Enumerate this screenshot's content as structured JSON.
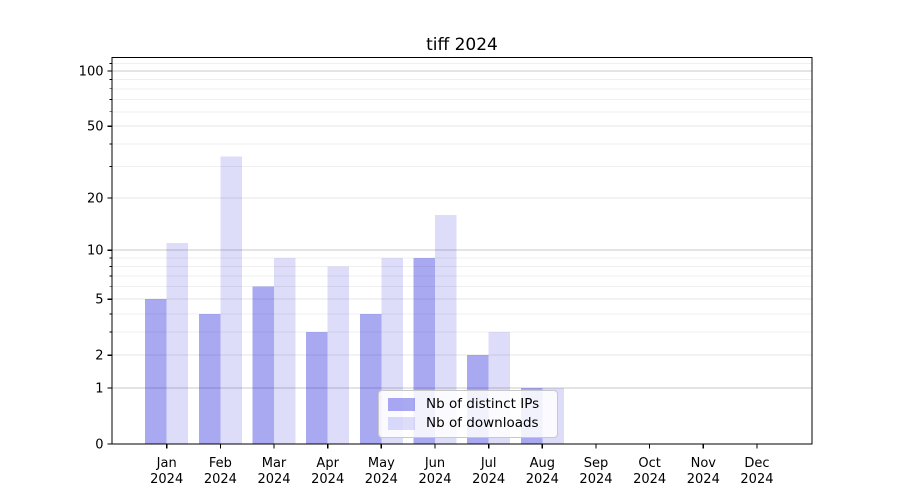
{
  "chart_data": {
    "type": "bar",
    "title": "tiff 2024",
    "categories": [
      "Jan",
      "Feb",
      "Mar",
      "Apr",
      "May",
      "Jun",
      "Jul",
      "Aug",
      "Sep",
      "Oct",
      "Nov",
      "Dec"
    ],
    "year": "2024",
    "series": [
      {
        "name": "Nb of distinct IPs",
        "values": [
          5,
          4,
          6,
          3,
          4,
          9,
          2,
          1,
          0,
          0,
          0,
          0
        ],
        "color": "#aaaaf2"
      },
      {
        "name": "Nb of downloads",
        "values": [
          11,
          34,
          9,
          8,
          9,
          16,
          3,
          1,
          0,
          0,
          0,
          0
        ],
        "color": "#ddddf9"
      }
    ],
    "xlabel": "",
    "ylabel": "",
    "y_axis": {
      "scale": "log10(1+value)",
      "tick_values": [
        0,
        1,
        2,
        5,
        10,
        20,
        50,
        100
      ],
      "minor_gridline_values": [
        3,
        4,
        6,
        7,
        8,
        9,
        30,
        40,
        60,
        70,
        80,
        90,
        110
      ],
      "max_value": 116
    },
    "grid": "on",
    "legend_position": "lower center"
  },
  "style": {
    "bar_base_rgb": "30,30,220",
    "ips_opacity": 0.38,
    "downloads_opacity": 0.15,
    "grid_major": "#c8c8c8",
    "grid_mid": "#e6e6e6",
    "grid_minor": "#efefef",
    "axis": "#000000",
    "text": "#000000",
    "legend_bg": "rgba(255,255,255,0.85)",
    "legend_border": "#c8c8c8"
  }
}
